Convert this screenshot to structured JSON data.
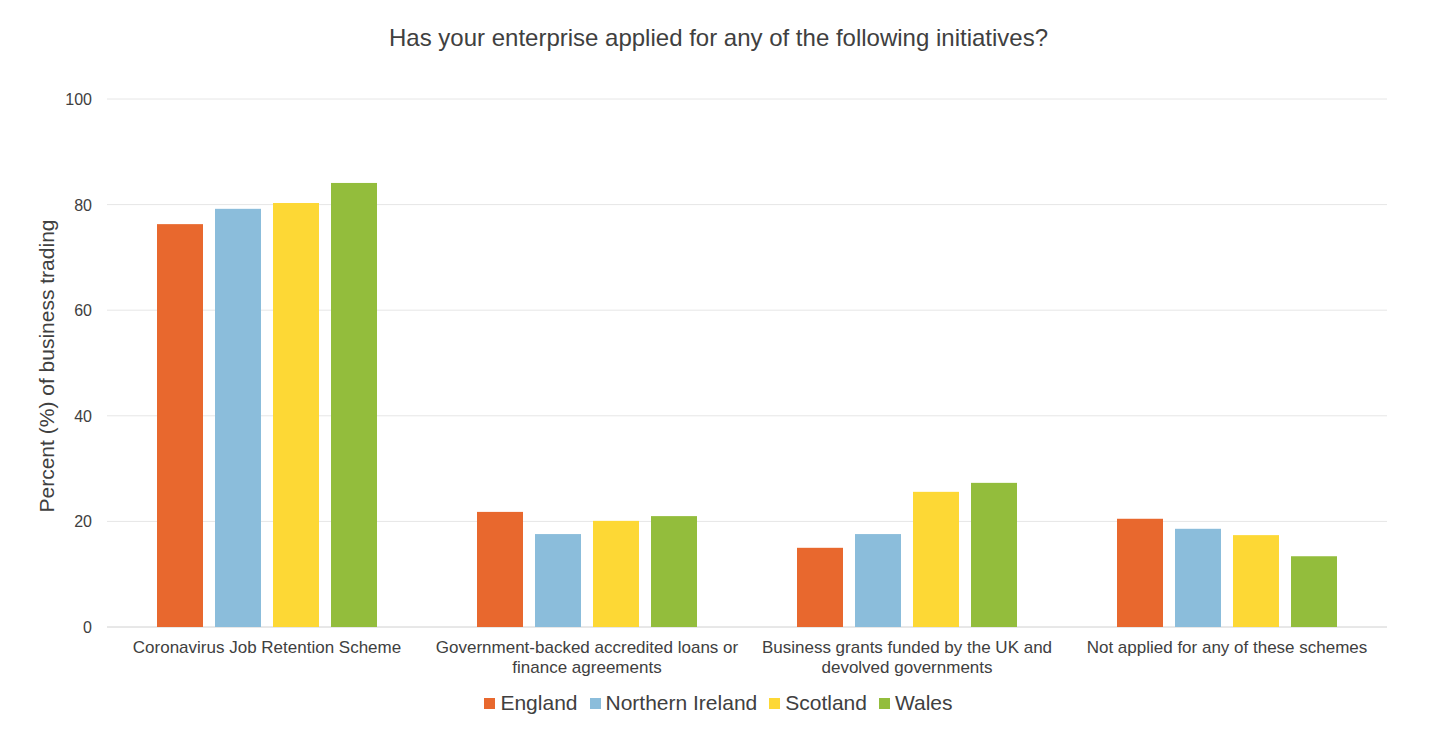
{
  "chart_data": {
    "type": "bar",
    "title": "Has your enterprise applied for any of the following initiatives?",
    "y_label": "Percent (%) of business trading",
    "categories": [
      "Coronavirus Job Retention Scheme",
      "Government-backed accredited loans or finance agreements",
      "Business grants funded by the UK and devolved governments",
      "Not applied for any of these schemes"
    ],
    "series": [
      {
        "name": "England",
        "color": "#E8682E",
        "values": [
          76.3,
          21.8,
          15.0,
          20.5
        ]
      },
      {
        "name": "Northern Ireland",
        "color": "#8BBDDB",
        "values": [
          79.2,
          17.6,
          17.6,
          18.6
        ]
      },
      {
        "name": "Scotland",
        "color": "#FDD835",
        "values": [
          80.3,
          20.1,
          25.6,
          17.4
        ]
      },
      {
        "name": "Wales",
        "color": "#93BD3C",
        "values": [
          84.1,
          21.0,
          27.3,
          13.4
        ]
      }
    ],
    "ylim": [
      0,
      100
    ],
    "yticks": [
      0,
      20,
      40,
      60,
      80,
      100
    ],
    "grid": true,
    "legend": "bottom"
  }
}
